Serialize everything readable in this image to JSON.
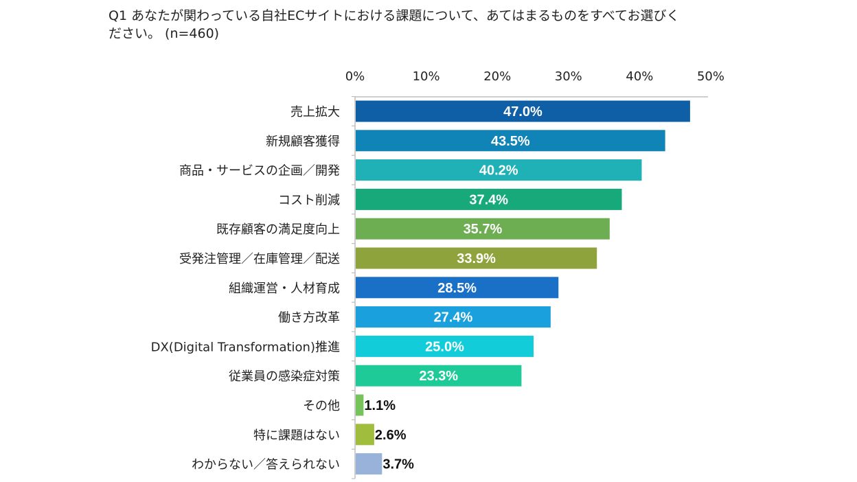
{
  "chart_data": {
    "type": "bar",
    "orientation": "horizontal",
    "title_lines": [
      "Q1 あなたが関わっている自社ECサイトにおける課題について、あてはまるものをすべてお選びく",
      "ださい。 (n=460)"
    ],
    "xlim": [
      0,
      50
    ],
    "x_ticks": [
      "0%",
      "10%",
      "20%",
      "30%",
      "40%",
      "50%"
    ],
    "x_tick_values": [
      0,
      10,
      20,
      30,
      40,
      50
    ],
    "tick_axis_position": "top",
    "grid": false,
    "categories": [
      "売上拡大",
      "新規顧客獲得",
      "商品・サービスの企画／開発",
      "コスト削減",
      "既存顧客の満足度向上",
      "受発注管理／在庫管理／配送",
      "組織運営・人材育成",
      "働き方改革",
      "DX(Digital Transformation)推進",
      "従業員の感染症対策",
      "その他",
      "特に課題はない",
      "わからない／答えられない"
    ],
    "values": [
      47.0,
      43.5,
      40.2,
      37.4,
      35.7,
      33.9,
      28.5,
      27.4,
      25.0,
      23.3,
      1.1,
      2.6,
      3.7
    ],
    "value_labels": [
      "47.0%",
      "43.5%",
      "40.2%",
      "37.4%",
      "35.7%",
      "33.9%",
      "28.5%",
      "27.4%",
      "25.0%",
      "23.3%",
      "1.1%",
      "2.6%",
      "3.7%"
    ],
    "colors": [
      "#0f5fa7",
      "#1083b7",
      "#1fb1b5",
      "#17a979",
      "#6eae52",
      "#8ea33c",
      "#1a6fc6",
      "#1aa0dc",
      "#12cdd9",
      "#1ecb98",
      "#76c35b",
      "#a1bd3e",
      "#98b2d9"
    ]
  }
}
